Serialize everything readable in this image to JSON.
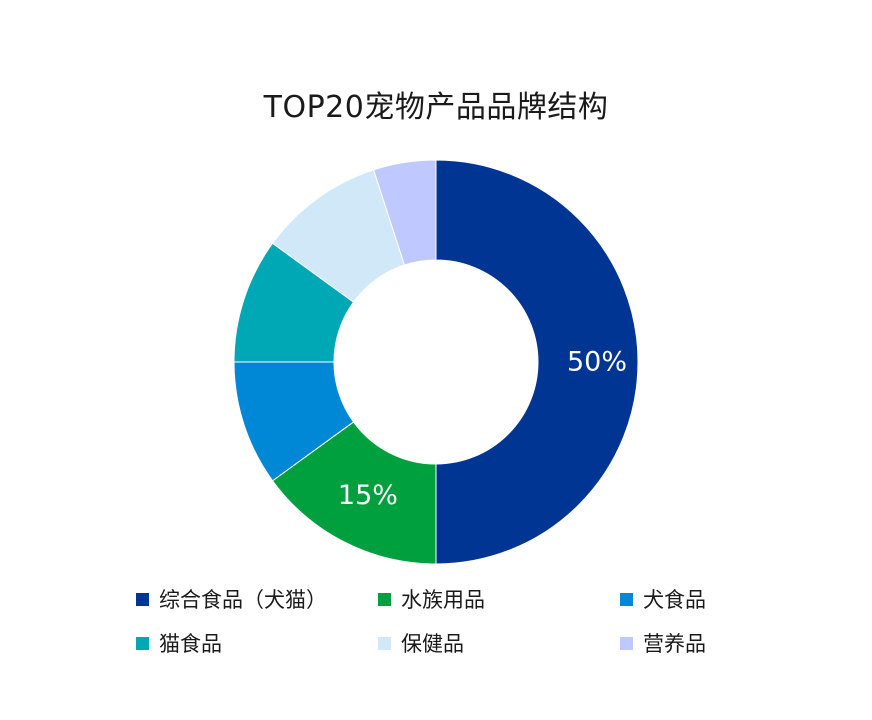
{
  "chart_data": {
    "type": "pie",
    "title": "TOP20宠物产品品牌结构",
    "categories": [
      "综合食品（犬猫）",
      "水族用品",
      "犬食品",
      "猫食品",
      "保健品",
      "营养品"
    ],
    "values": [
      50,
      15,
      10,
      10,
      10,
      5
    ],
    "unit": "%",
    "colors": [
      "#003594",
      "#00A03E",
      "#0088D6",
      "#00A7B5",
      "#D0E8F8",
      "#BFC8FF"
    ],
    "data_labels": [
      "50%",
      "15%",
      "",
      "",
      "",
      ""
    ],
    "donut": true,
    "legend": "bottom"
  }
}
